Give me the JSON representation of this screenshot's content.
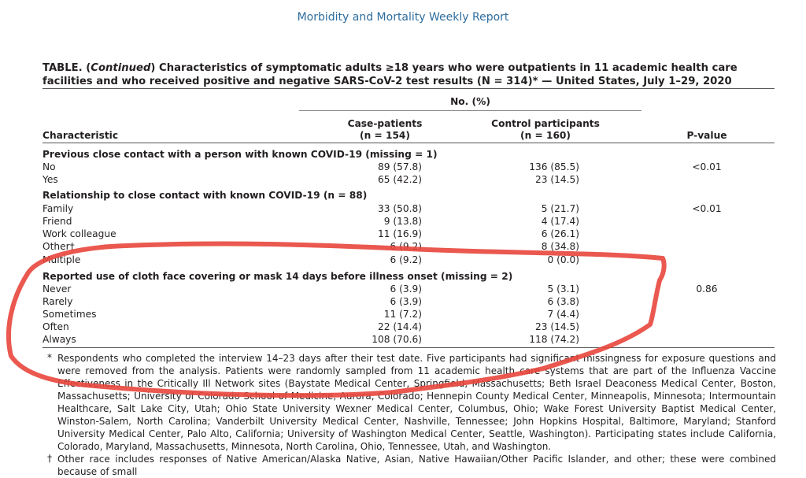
{
  "journal_title": "Morbidity and Mortality Weekly Report",
  "table": {
    "title_prefix": "TABLE. (",
    "title_continued": "Continued",
    "title_rest": ") Characteristics of symptomatic adults ≥18 years who were outpatients in 11 academic health care facilities and who received positive and negative SARS-CoV-2 test results (N = 314)* — United States, July 1–29, 2020",
    "no_pct_header": "No. (%)",
    "col_characteristic": "Characteristic",
    "col_case": "Case-patients",
    "col_case_n": "(n = 154)",
    "col_control": "Control participants",
    "col_control_n": "(n = 160)",
    "col_pvalue": "P-value",
    "rows": [
      {
        "type": "section",
        "label": "Previous close contact with a person with known COVID-19 (missing = 1)"
      },
      {
        "label": "No",
        "case": "89 (57.8)",
        "control": "136 (85.5)",
        "p": "<0.01"
      },
      {
        "label": "Yes",
        "case": "65 (42.2)",
        "control": "23 (14.5)",
        "p": ""
      },
      {
        "type": "section",
        "label": "Relationship to close contact with known COVID-19 (n = 88)"
      },
      {
        "label": "Family",
        "case": "33 (50.8)",
        "control": "5 (21.7)",
        "p": "<0.01"
      },
      {
        "label": "Friend",
        "case": "9 (13.8)",
        "control": "4 (17.4)",
        "p": ""
      },
      {
        "label": "Work colleague",
        "case": "11 (16.9)",
        "control": "6 (26.1)",
        "p": ""
      },
      {
        "label": "Other†",
        "case": "6 (9.2)",
        "control": "8 (34.8)",
        "p": ""
      },
      {
        "label": "Multiple",
        "case": "6 (9.2)",
        "control": "0 (0.0)",
        "p": ""
      },
      {
        "type": "section",
        "label": "Reported use of cloth face covering or mask 14 days before illness onset (missing = 2)"
      },
      {
        "label": "Never",
        "case": "6 (3.9)",
        "control": "5 (3.1)",
        "p": "0.86"
      },
      {
        "label": "Rarely",
        "case": "6 (3.9)",
        "control": "6 (3.8)",
        "p": ""
      },
      {
        "label": "Sometimes",
        "case": "11 (7.2)",
        "control": "7 (4.4)",
        "p": ""
      },
      {
        "label": "Often",
        "case": "22 (14.4)",
        "control": "23 (14.5)",
        "p": ""
      },
      {
        "label": "Always",
        "case": "108 (70.6)",
        "control": "118 (74.2)",
        "p": ""
      }
    ]
  },
  "footnotes": [
    {
      "mark": "*",
      "text": "Respondents who completed the interview 14–23 days after their test date. Five participants had significant missingness for exposure questions and were removed from the analysis. Patients were randomly sampled from 11 academic health care systems that are part of the Influenza Vaccine Effectiveness in the Critically Ill Network sites (Baystate Medical Center, Springfield, Massachusetts; Beth Israel Deaconess Medical Center, Boston, Massachusetts; University of Colorado School of Medicine, Aurora, Colorado; Hennepin County Medical Center, Minneapolis, Minnesota; Intermountain Healthcare, Salt Lake City, Utah; Ohio State University Wexner Medical Center, Columbus, Ohio; Wake Forest University Baptist Medical Center, Winston-Salem, North Carolina; Vanderbilt University Medical Center, Nashville, Tennessee; John Hopkins Hospital, Baltimore, Maryland; Stanford University Medical Center, Palo Alto, California; University of Washington Medical Center, Seattle, Washington). Participating states include California, Colorado, Maryland, Massachusetts, Minnesota, North Carolina, Ohio, Tennessee, Utah, and Washington."
    },
    {
      "mark": "†",
      "text": "Other race includes responses of Native American/Alaska Native, Asian, Native Hawaiian/Other Pacific Islander, and other; these were combined because of small"
    }
  ],
  "annotation_color": "#e8463c"
}
